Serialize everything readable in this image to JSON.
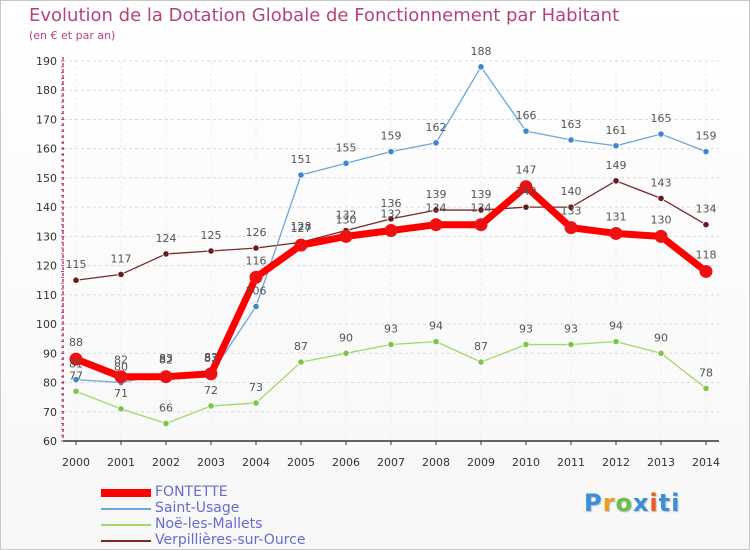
{
  "title": "Evolution de la Dotation Globale de Fonctionnement par Habitant",
  "subtitle": "(en € et par an)",
  "logo_text": "Proxiti",
  "colors": {
    "title": "#b5437e",
    "axis": "#b5437e",
    "grid": "#d9d9d9",
    "label": "#555555"
  },
  "chart_data": {
    "type": "line",
    "title": "Evolution de la Dotation Globale de Fonctionnement par Habitant",
    "subtitle": "(en € et par an)",
    "xlabel": "",
    "ylabel": "",
    "ylim": [
      60,
      190
    ],
    "yticks": [
      60,
      70,
      80,
      90,
      100,
      110,
      120,
      130,
      140,
      150,
      160,
      170,
      180,
      190
    ],
    "grid": "horizontal dashed",
    "legend_position": "bottom-left",
    "categories": [
      "2000",
      "2001",
      "2002",
      "2003",
      "2004",
      "2005",
      "2006",
      "2007",
      "2008",
      "2009",
      "2010",
      "2011",
      "2012",
      "2013",
      "2014"
    ],
    "series": [
      {
        "name": "FONTETTE",
        "color": "#ff0000",
        "marker": "#ee1111",
        "values": [
          88,
          82,
          82,
          83,
          116,
          127,
          130,
          132,
          134,
          134,
          147,
          133,
          131,
          130,
          118
        ],
        "labels": [
          "88",
          "82",
          "82",
          "83",
          "116",
          "127",
          "130",
          "132",
          "134",
          "134",
          "147",
          "133",
          "131",
          "130",
          "118"
        ]
      },
      {
        "name": "Saint-Usage",
        "color": "#6aa7dc",
        "marker": "#3f86cf",
        "values": [
          81,
          80,
          83,
          83,
          106,
          151,
          155,
          159,
          162,
          188,
          166,
          163,
          161,
          165,
          159
        ],
        "labels": [
          "81",
          "80",
          "83",
          "83",
          "106",
          "151",
          "155",
          "159",
          "162",
          "188",
          "166",
          "163",
          "161",
          "165",
          "159"
        ]
      },
      {
        "name": "Noë-les-Mallets",
        "color": "#a2d86a",
        "marker": "#7cc54a",
        "values": [
          77,
          71,
          66,
          72,
          73,
          87,
          90,
          93,
          94,
          87,
          93,
          93,
          94,
          90,
          78
        ],
        "labels": [
          "77",
          "71",
          "66",
          "72",
          "73",
          "87",
          "90",
          "93",
          "94",
          "87",
          "93",
          "93",
          "94",
          "90",
          "78"
        ]
      },
      {
        "name": "Verpillières-sur-Ource",
        "color": "#7a2a2a",
        "marker": "#6a1a1a",
        "values": [
          115,
          117,
          124,
          125,
          126,
          128,
          132,
          136,
          139,
          139,
          140,
          140,
          149,
          143,
          134
        ],
        "labels": [
          "115",
          "117",
          "124",
          "125",
          "126",
          "128",
          "132",
          "136",
          "139",
          "139",
          "140",
          "140",
          "149",
          "143",
          "134"
        ]
      }
    ]
  }
}
